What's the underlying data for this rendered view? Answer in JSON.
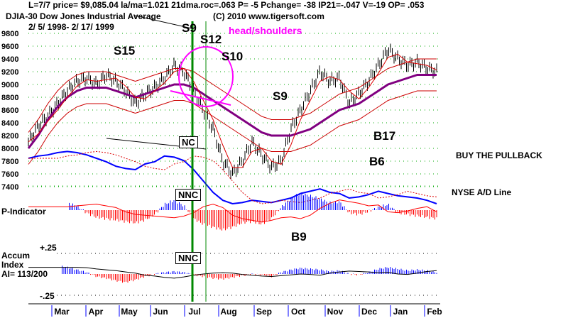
{
  "header": {
    "stats": "L=7/7  price= $9,085.04  la/ma=1.021 21dma.roc=.063 P= -5 Pchange= -38 IP21=-.047 V=-19 OP= .053",
    "symbol": "DJIA-30  Dow Jones Industrial Average",
    "dates": "2/ 5/ 1998- 2/ 17/ 1999",
    "copyright": "(C) 2010 www.tigersoft.com"
  },
  "annotations": {
    "s9a": "S9",
    "s12": "S12",
    "head_shoulders": "head/shoulders",
    "s10": "S10",
    "s15": "S15",
    "s9b": "S9",
    "b17": "B17",
    "b6": "B6",
    "b9": "B9",
    "nc": "NC",
    "nnc1": "NNC",
    "nnc2": "NNC",
    "buy_pullback": "BUY THE PULLBACK",
    "ad_label": "NYSE A/D Line"
  },
  "panels": {
    "p_indicator": "P-Indicator",
    "accum1": "Accum",
    "accum2": "Index",
    "ai": "AI= 113/200",
    "plus": "+.25",
    "minus": "-.25"
  },
  "colors": {
    "up": "#0000ff",
    "down": "#ff0000",
    "ma": "#800080",
    "signal": "#008000",
    "annot": "#ff00ff"
  },
  "chart_data": {
    "type": "line",
    "title": "DJIA-30 Dow Jones Industrial Average",
    "yticks": [
      9800,
      9600,
      9400,
      9200,
      9000,
      8800,
      8600,
      8400,
      8200,
      8000,
      7800,
      7600,
      7400
    ],
    "ylim": [
      7400,
      9800
    ],
    "months": [
      "Mar",
      "Apr",
      "May",
      "Jun",
      "Jul",
      "Aug",
      "Sep",
      "Oct",
      "Nov",
      "Dec",
      "Jan",
      "Feb"
    ],
    "price": [
      8100,
      8350,
      8500,
      8700,
      8900,
      9050,
      9100,
      9000,
      9150,
      9050,
      8900,
      8700,
      8850,
      8950,
      9100,
      9300,
      9200,
      8900,
      8600,
      8300,
      7800,
      7600,
      7800,
      8100,
      7900,
      7700,
      7800,
      8300,
      8600,
      8900,
      9200,
      9050,
      9100,
      8700,
      8850,
      9050,
      9300,
      9550,
      9400,
      9300,
      9350,
      9250,
      9200
    ],
    "ma_long": [
      8000,
      8200,
      8450,
      8650,
      8800,
      8900,
      8950,
      8950,
      8950,
      8900,
      8850,
      8800,
      8850,
      8900,
      8950,
      9000,
      9000,
      8950,
      8850,
      8750,
      8650,
      8550,
      8450,
      8350,
      8250,
      8200,
      8200,
      8200,
      8250,
      8300,
      8400,
      8500,
      8600,
      8650,
      8700,
      8800,
      8900,
      9000,
      9050,
      9100,
      9150,
      9150,
      9150
    ],
    "ad_line": [
      7850,
      7870,
      7880,
      7900,
      7910,
      7900,
      7880,
      7850,
      7820,
      7780,
      7760,
      7750,
      7800,
      7820,
      7870,
      7860,
      7830,
      7750,
      7650,
      7550,
      7480,
      7450,
      7460,
      7480,
      7470,
      7460,
      7480,
      7500,
      7540,
      7560,
      7580,
      7550,
      7540,
      7500,
      7510,
      7530,
      7560,
      7540,
      7520,
      7510,
      7500,
      7480,
      7450
    ],
    "p_indicator": [
      4,
      5,
      6,
      7,
      5,
      3,
      -2,
      -5,
      -6,
      -7,
      -8,
      -9,
      -7,
      -3,
      4,
      7,
      3,
      -6,
      -10,
      -12,
      -14,
      -12,
      -9,
      -8,
      -10,
      -6,
      2,
      8,
      12,
      10,
      8,
      5,
      6,
      -2,
      -3,
      -1,
      2,
      4,
      -2,
      -3,
      -4,
      -5,
      -6
    ],
    "accum_index": [
      0.16,
      0.15,
      0.12,
      0.1,
      0.08,
      0.05,
      0.02,
      -0.03,
      -0.05,
      -0.08,
      -0.1,
      -0.07,
      -0.03,
      0.0,
      0.02,
      0.03,
      0.02,
      -0.01,
      -0.03,
      -0.05,
      -0.06,
      -0.04,
      -0.02,
      0.0,
      -0.01,
      -0.03,
      0.02,
      0.05,
      0.07,
      0.06,
      0.05,
      0.03,
      0.04,
      0.0,
      -0.01,
      0.02,
      0.06,
      0.08,
      0.06,
      0.04,
      0.05,
      0.04,
      0.02
    ]
  }
}
